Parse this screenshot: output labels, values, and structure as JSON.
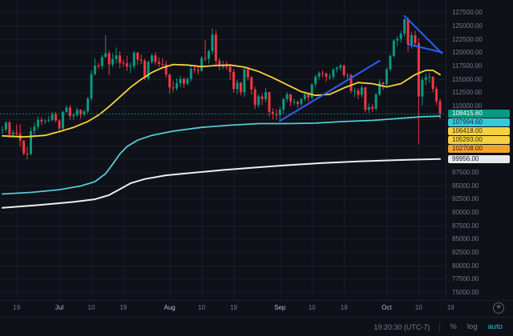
{
  "toolbar": {
    "clock": "19:20:30 (UTC-7)",
    "percent_label": "%",
    "log_label": "log",
    "auto_label": "auto",
    "auto_color": "#2bbfd0"
  },
  "chart_data": {
    "type": "candlestick",
    "timeframe_hint": "daily, mid-June to mid-October",
    "price_range": [
      73500,
      129800
    ],
    "y_ticks": [
      127500,
      125000,
      122500,
      120000,
      117500,
      115000,
      112500,
      110000,
      107500,
      105000,
      102500,
      100000,
      97500,
      95000,
      92500,
      90000,
      87500,
      85000,
      82500,
      80000,
      77500,
      75000
    ],
    "x_ticks": [
      {
        "i": 4,
        "label": "19",
        "major": false
      },
      {
        "i": 16,
        "label": "Jul",
        "major": true
      },
      {
        "i": 25,
        "label": "10",
        "major": false
      },
      {
        "i": 34,
        "label": "19",
        "major": false
      },
      {
        "i": 47,
        "label": "Aug",
        "major": true
      },
      {
        "i": 56,
        "label": "10",
        "major": false
      },
      {
        "i": 65,
        "label": "19",
        "major": false
      },
      {
        "i": 78,
        "label": "Sep",
        "major": true
      },
      {
        "i": 87,
        "label": "10",
        "major": false
      },
      {
        "i": 96,
        "label": "19",
        "major": false
      },
      {
        "i": 108,
        "label": "Oct",
        "major": true
      },
      {
        "i": 117,
        "label": "10",
        "major": false
      },
      {
        "i": 126,
        "label": "19",
        "major": false
      }
    ],
    "candles": [
      [
        105400,
        106100,
        104600,
        105500
      ],
      [
        105500,
        107000,
        105100,
        106800
      ],
      [
        106800,
        107100,
        103900,
        104600
      ],
      [
        104600,
        105400,
        103900,
        104900
      ],
      [
        104900,
        106400,
        104000,
        104700
      ],
      [
        104700,
        106500,
        102300,
        103400
      ],
      [
        103400,
        103500,
        100700,
        101000
      ],
      [
        101000,
        102300,
        99900,
        100900
      ],
      [
        100900,
        105900,
        100600,
        105200
      ],
      [
        105200,
        106800,
        104400,
        106000
      ],
      [
        106000,
        108000,
        105400,
        107300
      ],
      [
        107300,
        107800,
        106300,
        107000
      ],
      [
        107000,
        107500,
        106500,
        107100
      ],
      [
        107100,
        108000,
        106900,
        107300
      ],
      [
        107300,
        108800,
        107000,
        108400
      ],
      [
        108400,
        108800,
        106800,
        107200
      ],
      [
        107200,
        107400,
        105300,
        105700
      ],
      [
        105700,
        109000,
        105400,
        108800
      ],
      [
        108800,
        110000,
        108600,
        109600
      ],
      [
        109600,
        110100,
        107300,
        108000
      ],
      [
        108000,
        108600,
        107300,
        108200
      ],
      [
        108200,
        109600,
        107900,
        109200
      ],
      [
        109200,
        109300,
        107500,
        108300
      ],
      [
        108300,
        109200,
        107900,
        108900
      ],
      [
        108900,
        111600,
        108600,
        111300
      ],
      [
        111300,
        116600,
        110900,
        115900
      ],
      [
        115900,
        118900,
        115600,
        117500
      ],
      [
        117500,
        118000,
        116900,
        117400
      ],
      [
        117400,
        119500,
        116800,
        119100
      ],
      [
        119100,
        123200,
        118900,
        119800
      ],
      [
        119800,
        120300,
        115700,
        117700
      ],
      [
        117700,
        119800,
        117200,
        118700
      ],
      [
        118700,
        120900,
        117900,
        119400
      ],
      [
        119400,
        120200,
        117000,
        118000
      ],
      [
        118000,
        118600,
        117300,
        117900
      ],
      [
        117900,
        119300,
        116500,
        117300
      ],
      [
        117300,
        118100,
        116100,
        117400
      ],
      [
        117400,
        120200,
        116900,
        119900
      ],
      [
        119900,
        120000,
        117600,
        118600
      ],
      [
        118600,
        119600,
        117800,
        118400
      ],
      [
        118400,
        118800,
        114800,
        115100
      ],
      [
        115100,
        118400,
        114700,
        118200
      ],
      [
        118200,
        119700,
        117800,
        119400
      ],
      [
        119400,
        120000,
        117600,
        118200
      ],
      [
        118200,
        119000,
        117200,
        117800
      ],
      [
        117800,
        118900,
        117100,
        117700
      ],
      [
        117700,
        118400,
        115200,
        115800
      ],
      [
        115800,
        116000,
        112200,
        113400
      ],
      [
        113400,
        114600,
        112500,
        113200
      ],
      [
        113200,
        115100,
        112800,
        114200
      ],
      [
        114200,
        115600,
        113500,
        115000
      ],
      [
        115000,
        115300,
        113300,
        114100
      ],
      [
        114100,
        115300,
        113800,
        115000
      ],
      [
        115000,
        117400,
        114500,
        116900
      ],
      [
        116900,
        117600,
        116100,
        116700
      ],
      [
        116700,
        117200,
        115800,
        116500
      ],
      [
        116500,
        119300,
        116300,
        118900
      ],
      [
        118900,
        122300,
        118300,
        118800
      ],
      [
        118800,
        120500,
        117900,
        120200
      ],
      [
        120200,
        124500,
        119500,
        123300
      ],
      [
        123300,
        124200,
        117300,
        118400
      ],
      [
        118400,
        118900,
        116600,
        117400
      ],
      [
        117400,
        118400,
        116800,
        117400
      ],
      [
        117400,
        118300,
        116700,
        117300
      ],
      [
        117300,
        117400,
        114800,
        116300
      ],
      [
        116300,
        116800,
        112400,
        113100
      ],
      [
        113100,
        114900,
        112100,
        114300
      ],
      [
        114300,
        114400,
        111900,
        112500
      ],
      [
        112500,
        117000,
        111600,
        116800
      ],
      [
        116800,
        117300,
        114700,
        115300
      ],
      [
        115300,
        115500,
        112000,
        113000
      ],
      [
        113000,
        113500,
        109300,
        110100
      ],
      [
        110100,
        112100,
        109600,
        111700
      ],
      [
        111700,
        112300,
        110100,
        111200
      ],
      [
        111200,
        113300,
        110600,
        112500
      ],
      [
        112500,
        112600,
        107900,
        108800
      ],
      [
        108800,
        109500,
        107400,
        108400
      ],
      [
        108400,
        109300,
        107300,
        108200
      ],
      [
        108200,
        109800,
        107200,
        109200
      ],
      [
        109200,
        111500,
        108500,
        111200
      ],
      [
        111200,
        112500,
        110600,
        112100
      ],
      [
        112100,
        112200,
        109900,
        110700
      ],
      [
        110700,
        111300,
        110100,
        110700
      ],
      [
        110700,
        110900,
        109600,
        110300
      ],
      [
        110300,
        111500,
        109900,
        111200
      ],
      [
        111200,
        112600,
        110800,
        112100
      ],
      [
        112100,
        112400,
        110700,
        111500
      ],
      [
        111500,
        114100,
        111100,
        114000
      ],
      [
        114000,
        115800,
        113500,
        115400
      ],
      [
        115400,
        116400,
        114900,
        116100
      ],
      [
        116100,
        116600,
        115300,
        116000
      ],
      [
        116000,
        116200,
        114500,
        115400
      ],
      [
        115400,
        116000,
        114800,
        115400
      ],
      [
        115400,
        117000,
        114900,
        116800
      ],
      [
        116800,
        117300,
        116200,
        117100
      ],
      [
        117100,
        117900,
        116500,
        117500
      ],
      [
        117500,
        117700,
        115300,
        115700
      ],
      [
        115700,
        116100,
        115000,
        115700
      ],
      [
        115700,
        116000,
        112300,
        112700
      ],
      [
        112700,
        113400,
        111600,
        112800
      ],
      [
        112800,
        113200,
        111200,
        112000
      ],
      [
        112000,
        113800,
        111500,
        113400
      ],
      [
        113400,
        113500,
        108700,
        109200
      ],
      [
        109200,
        110400,
        108600,
        109700
      ],
      [
        109700,
        110200,
        108800,
        109400
      ],
      [
        109400,
        112300,
        109000,
        112100
      ],
      [
        112100,
        114900,
        111800,
        114300
      ],
      [
        114300,
        114500,
        112900,
        114000
      ],
      [
        114000,
        117100,
        113600,
        116800
      ],
      [
        116800,
        119600,
        116400,
        119300
      ],
      [
        119300,
        122500,
        119000,
        122200
      ],
      [
        122200,
        123000,
        121200,
        122500
      ],
      [
        122500,
        124000,
        121800,
        123500
      ],
      [
        123500,
        126300,
        122900,
        126200
      ],
      [
        126200,
        126500,
        120100,
        121500
      ],
      [
        121500,
        123900,
        120700,
        123200
      ],
      [
        123200,
        124000,
        121000,
        121700
      ],
      [
        121700,
        122600,
        102708,
        111700
      ],
      [
        111700,
        115400,
        110000,
        114800
      ],
      [
        114800,
        116000,
        113900,
        115300
      ],
      [
        115300,
        116100,
        114300,
        115400
      ],
      [
        115400,
        115500,
        112500,
        113100
      ],
      [
        113100,
        113600,
        110100,
        110800
      ],
      [
        110800,
        111300,
        107500,
        108415.6
      ]
    ],
    "overlays": [
      {
        "name": "ma-yellow",
        "color": "#f8d33a",
        "width": 1.8,
        "points": [
          [
            0,
            104300
          ],
          [
            6,
            104100
          ],
          [
            12,
            104400
          ],
          [
            16,
            105100
          ],
          [
            20,
            105900
          ],
          [
            24,
            107000
          ],
          [
            27,
            108200
          ],
          [
            30,
            109800
          ],
          [
            33,
            111600
          ],
          [
            36,
            113400
          ],
          [
            39,
            114900
          ],
          [
            42,
            116200
          ],
          [
            45,
            117100
          ],
          [
            48,
            117700
          ],
          [
            52,
            117600
          ],
          [
            56,
            117300
          ],
          [
            60,
            117500
          ],
          [
            64,
            117600
          ],
          [
            68,
            117200
          ],
          [
            72,
            116400
          ],
          [
            76,
            115200
          ],
          [
            80,
            113900
          ],
          [
            84,
            112600
          ],
          [
            88,
            111900
          ],
          [
            92,
            112100
          ],
          [
            96,
            113300
          ],
          [
            100,
            114300
          ],
          [
            104,
            114100
          ],
          [
            108,
            113500
          ],
          [
            112,
            114100
          ],
          [
            116,
            115800
          ],
          [
            119,
            116600
          ],
          [
            121,
            116600
          ],
          [
            123,
            115800
          ]
        ]
      },
      {
        "name": "ma-cyan",
        "color": "#56c9d8",
        "width": 1.8,
        "points": [
          [
            0,
            93400
          ],
          [
            8,
            93700
          ],
          [
            16,
            94200
          ],
          [
            22,
            94900
          ],
          [
            26,
            95700
          ],
          [
            29,
            97200
          ],
          [
            31,
            99000
          ],
          [
            33,
            100900
          ],
          [
            35,
            102300
          ],
          [
            38,
            103500
          ],
          [
            42,
            104400
          ],
          [
            48,
            105200
          ],
          [
            56,
            105900
          ],
          [
            64,
            106300
          ],
          [
            72,
            106600
          ],
          [
            80,
            106600
          ],
          [
            88,
            106700
          ],
          [
            96,
            107000
          ],
          [
            104,
            107200
          ],
          [
            112,
            107600
          ],
          [
            118,
            107900
          ],
          [
            123,
            107994.6
          ]
        ]
      },
      {
        "name": "ma-white",
        "color": "#eceff2",
        "width": 2,
        "points": [
          [
            0,
            90800
          ],
          [
            10,
            91300
          ],
          [
            20,
            91900
          ],
          [
            26,
            92400
          ],
          [
            30,
            93200
          ],
          [
            33,
            94300
          ],
          [
            36,
            95400
          ],
          [
            40,
            96200
          ],
          [
            46,
            96900
          ],
          [
            54,
            97400
          ],
          [
            62,
            97900
          ],
          [
            70,
            98300
          ],
          [
            80,
            98800
          ],
          [
            90,
            99200
          ],
          [
            100,
            99500
          ],
          [
            110,
            99750
          ],
          [
            118,
            99900
          ],
          [
            123,
            99956
          ]
        ]
      }
    ],
    "drawings": [
      {
        "name": "trendline-ascending",
        "color": "#2962ff",
        "width": 2.2,
        "from": [
          78,
          107100
        ],
        "to": [
          106,
          118400
        ]
      },
      {
        "name": "trendline-peak-upper",
        "color": "#2962ff",
        "width": 2.2,
        "from": [
          113,
          126800
        ],
        "to": [
          123.5,
          119800
        ]
      },
      {
        "name": "trendline-peak-lower",
        "color": "#2962ff",
        "width": 2.2,
        "from": [
          114,
          121500
        ],
        "to": [
          123.5,
          120000
        ]
      }
    ],
    "last_price_line": {
      "value": 108415.6,
      "color": "#089981"
    },
    "price_labels": [
      {
        "text": "108415.60",
        "value": 108415.6,
        "bg": "#089981",
        "fg": "#ffffff"
      },
      {
        "text": "107994.60",
        "value": 107994.6,
        "bg": "#35c8dc",
        "fg": "#0c2930"
      },
      {
        "text": "106418.00",
        "value": 106418.0,
        "bg": "#f5d142",
        "fg": "#332a06"
      },
      {
        "text": "105293.00",
        "value": 105293.0,
        "bg": "#f5d142",
        "fg": "#332a06"
      },
      {
        "text": "102708.00",
        "value": 102708.0,
        "bg": "#f0a22e",
        "fg": "#331f04"
      },
      {
        "text": "99956.00",
        "value": 99956.0,
        "bg": "#e9e9ea",
        "fg": "#14171f"
      }
    ],
    "colors": {
      "up": "#089981",
      "down": "#f23645",
      "grid": "#171c27",
      "axis_text": "#787b86",
      "trendline": "#2962ff",
      "background": "#0e1117"
    }
  }
}
